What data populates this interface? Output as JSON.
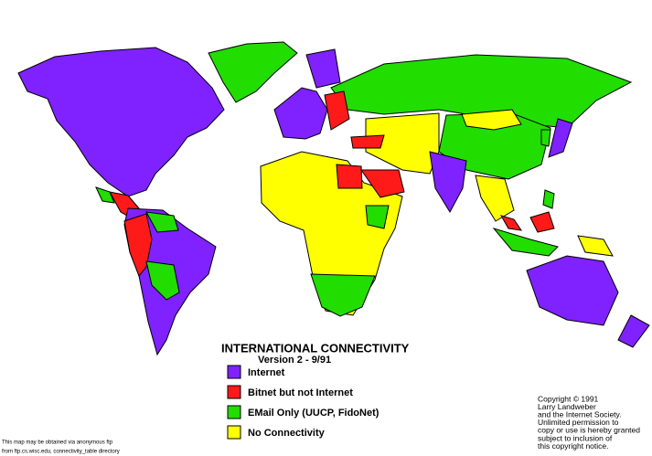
{
  "title": "INTERNATIONAL CONNECTIVITY",
  "subtitle": "Version 2  - 9/91",
  "legend": [
    {
      "label": "Internet",
      "color": "#7f22ff"
    },
    {
      "label": "Bitnet but not Internet",
      "color": "#ff1a1a"
    },
    {
      "label": "EMail Only (UUCP, FidoNet)",
      "color": "#22dd00"
    },
    {
      "label": "No Connectivity",
      "color": "#ffff00"
    }
  ],
  "copyright": [
    "Copyright © 1991",
    "Larry Landweber",
    "and the Internet Society.",
    "Unlimited permission to",
    "copy or use is hereby granted",
    "subject to inclusion of",
    "this copyright notice."
  ],
  "source": [
    "This map may be obtained via anonymous ftp",
    "from ftp.cs.wisc.edu, connectivity_table directory"
  ]
}
